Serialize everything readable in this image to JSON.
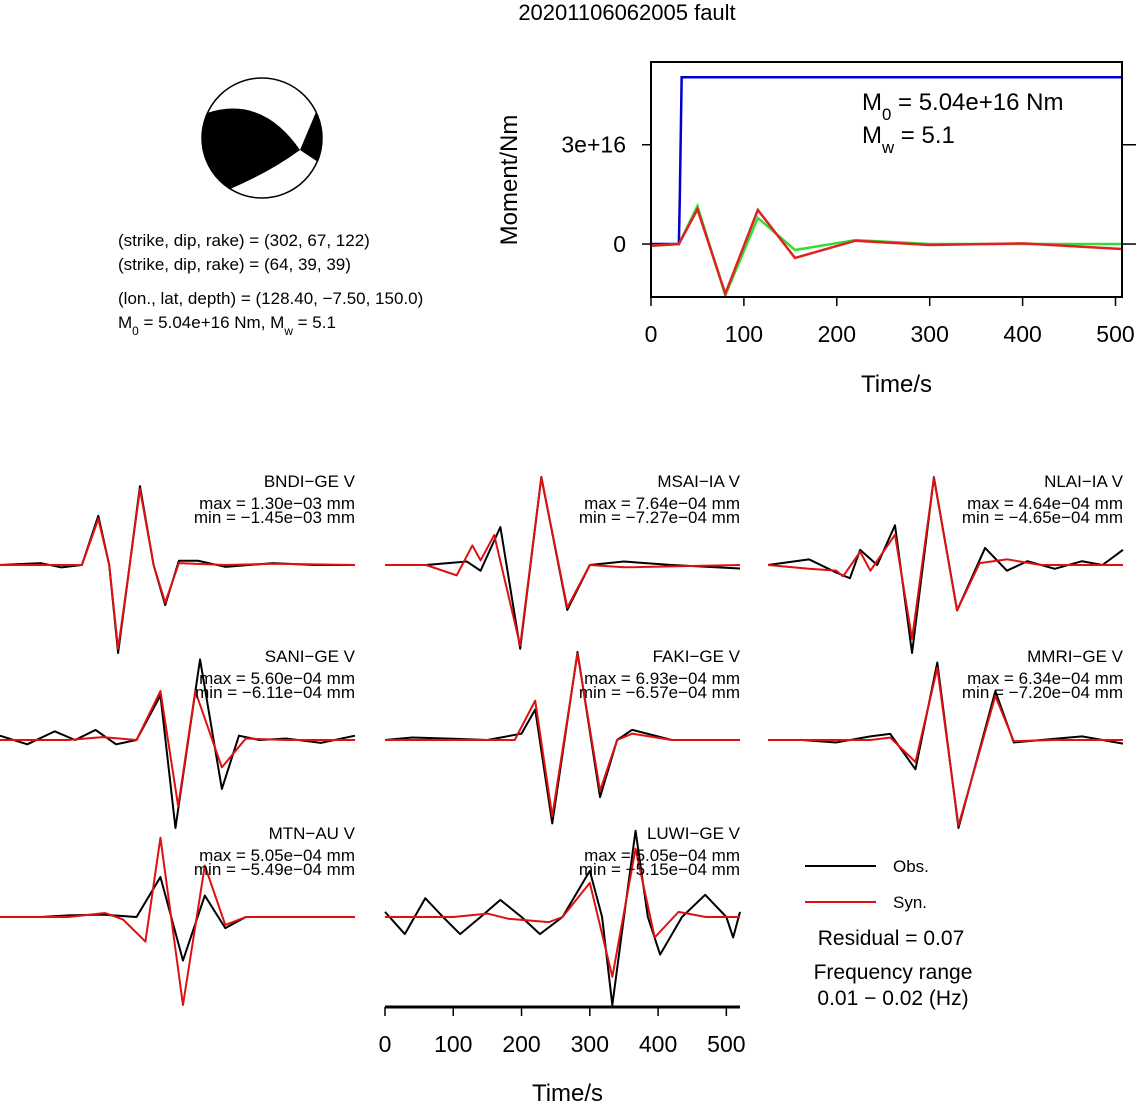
{
  "title": "20201106062005 fault",
  "mechanism": {
    "lines": [
      "(strike, dip, rake) = (302, 67, 122)",
      "(strike, dip, rake) = (64, 39, 39)",
      "(lon., lat, depth) = (128.40, −7.50, 150.0)"
    ],
    "moment_line": [
      "M",
      "0",
      " = 5.04e+16 Nm, M",
      "w",
      " = 5.1"
    ]
  },
  "chart_data": [
    {
      "type": "line",
      "xlabel": "Time/s",
      "ylabel": "Moment/Nm",
      "xlim": [
        0,
        507
      ],
      "ylim": [
        -1.6e+16,
        5.5e+16
      ],
      "xticks": [
        0,
        100,
        200,
        300,
        400,
        500
      ],
      "yticks": [
        0,
        {
          "value": 3e+16,
          "label": "3e+16"
        }
      ],
      "annotations": [
        [
          "M",
          "0",
          " = 5.04e+16 Nm"
        ],
        [
          "M",
          "w",
          " = 5.1"
        ]
      ],
      "series": [
        {
          "color": "#0000cc",
          "x": [
            0,
            30,
            31,
            33,
            507
          ],
          "values": [
            0,
            0,
            1.4e+16,
            5.04e+16,
            5.04e+16
          ]
        },
        {
          "color": "#33dd33",
          "x": [
            0,
            30,
            50,
            80,
            115,
            155,
            220,
            300,
            400,
            507
          ],
          "values": [
            -500000000000000.0,
            0,
            1.15e+16,
            -1.55e+16,
            7900000000000000.0,
            -1800000000000000.0,
            1200000000000000.0,
            0,
            0,
            0
          ]
        },
        {
          "color": "#dd2222",
          "x": [
            0,
            30,
            50,
            80,
            115,
            155,
            220,
            300,
            400,
            507
          ],
          "values": [
            -500000000000000.0,
            0,
            1.05e+16,
            -1.5e+16,
            1.03e+16,
            -4200000000000000.0,
            1000000000000000.0,
            -300000000000000.0,
            200000000000000.0,
            -1500000000000000.0
          ]
        }
      ]
    },
    {
      "type": "waveform",
      "xlabel": "Time/s",
      "xlim": [
        0,
        520
      ],
      "xticks": [
        0,
        100,
        200,
        300,
        400,
        500
      ],
      "legend": [
        {
          "name": "Obs.",
          "color": "#000000"
        },
        {
          "name": "Syn.",
          "color": "#e01010"
        }
      ],
      "residual": "Residual = 0.07",
      "frequency": [
        "Frequency range",
        "0.01 − 0.02 (Hz)"
      ],
      "stations": [
        {
          "name": "BNDI−GE V",
          "max": 0.0013,
          "max_label": "max = 1.30e−03 mm",
          "min": -0.00145,
          "min_label": "min = −1.45e−03 mm",
          "obs": {
            "x": [
              0,
              60,
              90,
              120,
              144,
              160,
              173,
              190,
              205,
              225,
              242,
              262,
              290,
              330,
              400,
              460,
              520
            ],
            "values": [
              0,
              3e-05,
              -4e-05,
              0,
              0.00081,
              0,
              -0.00145,
              0,
              0.0013,
              0,
              -0.00066,
              7e-05,
              7e-05,
              -3e-05,
              3e-05,
              0,
              0
            ]
          },
          "syn": {
            "x": [
              0,
              60,
              120,
              144,
              160,
              173,
              190,
              205,
              225,
              242,
              262,
              330,
              400,
              520
            ],
            "values": [
              0,
              0,
              0,
              0.00076,
              0,
              -0.00138,
              0,
              0.00125,
              0,
              -0.00062,
              3e-05,
              0,
              2e-05,
              0
            ]
          }
        },
        {
          "name": "MSAI−IA V",
          "max": 0.000764,
          "max_label": "max = 7.64e−04 mm",
          "min": -0.000727,
          "min_label": "min = −7.27e−04 mm",
          "obs": {
            "x": [
              0,
              60,
              120,
              140,
              169,
              198,
              229,
              267,
              300,
              350,
              420,
              520
            ],
            "values": [
              0,
              0,
              3e-05,
              -5e-05,
              0.00033,
              -0.000727,
              0.000764,
              -0.00039,
              0,
              3e-05,
              0,
              -3e-05
            ]
          },
          "syn": {
            "x": [
              0,
              60,
              105,
              128,
              140,
              160,
              198,
              229,
              267,
              300,
              350,
              520
            ],
            "values": [
              0,
              0,
              -9e-05,
              0.00017,
              4e-05,
              0.00026,
              -0.0007,
              0.00076,
              -0.00037,
              0,
              -2e-05,
              0
            ]
          }
        },
        {
          "name": "NLAI−IA V",
          "max": 0.000464,
          "max_label": "max = 4.64e−04 mm",
          "min": -0.000465,
          "min_label": "min = −4.65e−04 mm",
          "obs": {
            "x": [
              0,
              60,
              100,
              120,
              135,
              160,
              186,
              211,
              243,
              277,
              318,
              350,
              380,
              420,
              460,
              490,
              520
            ],
            "values": [
              0,
              3e-05,
              -4e-05,
              -7e-05,
              8e-05,
              0,
              0.00021,
              -0.000465,
              0.000464,
              -0.00024,
              9e-05,
              -3e-05,
              2e-05,
              -2e-05,
              2e-05,
              0,
              8e-05
            ]
          },
          "syn": {
            "x": [
              0,
              60,
              100,
              110,
              135,
              150,
              186,
              211,
              243,
              277,
              310,
              350,
              400,
              520
            ],
            "values": [
              0,
              -2e-05,
              -3e-05,
              -6e-05,
              7e-05,
              -3e-05,
              0.00016,
              -0.00039,
              0.00046,
              -0.00024,
              1e-05,
              3e-05,
              0,
              0
            ]
          }
        },
        {
          "name": "SANI−GE V",
          "max": 0.00056,
          "max_label": "max = 5.60e−04 mm",
          "min": -0.000611,
          "min_label": "min = −6.11e−04 mm",
          "obs": {
            "x": [
              0,
              40,
              80,
              110,
              140,
              170,
              200,
              235,
              257,
              293,
              325,
              350,
              380,
              420,
              470,
              520
            ],
            "values": [
              3e-05,
              -3e-05,
              6e-05,
              0,
              7e-05,
              -3e-05,
              0,
              0.00031,
              -0.000611,
              0.00056,
              -0.00034,
              3e-05,
              0,
              1e-05,
              -2e-05,
              3e-05
            ]
          },
          "syn": {
            "x": [
              0,
              100,
              150,
              200,
              235,
              261,
              286,
              325,
              360,
              420,
              520
            ],
            "values": [
              0,
              0,
              2e-05,
              0,
              0.00034,
              -0.00046,
              0.00034,
              -0.00019,
              1e-05,
              0,
              0
            ]
          }
        },
        {
          "name": "FAKI−GE V",
          "max": 0.000693,
          "max_label": "max = 6.93e−04 mm",
          "min": -0.000657,
          "min_label": "min = −6.57e−04 mm",
          "obs": {
            "x": [
              0,
              40,
              100,
              150,
              200,
              220,
              245,
              282,
              315,
              340,
              362,
              420,
              520
            ],
            "values": [
              0,
              2e-05,
              1e-05,
              0,
              5e-05,
              0.00024,
              -0.000657,
              0.000693,
              -0.00045,
              0,
              8e-05,
              0,
              0
            ]
          },
          "syn": {
            "x": [
              0,
              100,
              190,
              220,
              245,
              282,
              315,
              340,
              362,
              420,
              520
            ],
            "values": [
              0,
              0,
              0,
              0.00031,
              -0.0006,
              0.00068,
              -0.0004,
              0,
              5e-05,
              0,
              0
            ]
          }
        },
        {
          "name": "MMRI−GE V",
          "max": 0.000634,
          "max_label": "max = 6.34e−04 mm",
          "min": -0.00072,
          "min_label": "min = −7.20e−04 mm",
          "obs": {
            "x": [
              0,
              50,
              100,
              150,
              179,
              216,
              248,
              279,
              333,
              360,
              400,
              460,
              520
            ],
            "values": [
              0,
              0,
              -2e-05,
              3e-05,
              5e-05,
              -0.00024,
              0.000634,
              -0.00072,
              0.0004,
              -2e-05,
              0,
              3e-05,
              -3e-05
            ]
          },
          "syn": {
            "x": [
              0,
              100,
              150,
              179,
              216,
              248,
              279,
              333,
              360,
              420,
              520
            ],
            "values": [
              0,
              0,
              0,
              2e-05,
              -0.00018,
              0.00059,
              -0.0007,
              0.00036,
              -1e-05,
              0,
              0
            ]
          }
        },
        {
          "name": "MTN−AU V",
          "max": 0.000505,
          "max_label": "max = 5.05e−04 mm",
          "min": -0.000549,
          "min_label": "min = −5.49e−04 mm",
          "obs": {
            "x": [
              0,
              60,
              100,
              150,
              200,
              235,
              268,
              300,
              330,
              360,
              420,
              520
            ],
            "values": [
              0,
              0,
              2e-05,
              3e-05,
              0,
              0.000505,
              -0.000549,
              0.00027,
              -0.00014,
              0,
              0,
              0
            ]
          },
          "syn": {
            "x": [
              0,
              100,
              154,
              180,
              213,
              235,
              268,
              300,
              330,
              360,
              520
            ],
            "values": [
              0,
              0,
              5e-05,
              -3e-05,
              -0.00031,
              0.001,
              -0.00111,
              0.00065,
              -0.0001,
              0,
              0
            ]
          }
        },
        {
          "name": "LUWI−GE V",
          "max": 0.000505,
          "max_label": "max = 5.05e−04 mm",
          "min": -0.000515,
          "min_label": "min = −5.15e−04 mm",
          "obs": {
            "x": [
              0,
              29,
              59,
              85,
              110,
              140,
              169,
              200,
              227,
              260,
              300,
              318,
              333,
              350,
              367,
              385,
              403,
              435,
              469,
              500,
              510,
              520
            ],
            "values": [
              3e-05,
              -0.0001,
              0.00011,
              0,
              -0.0001,
              0,
              0.0001,
              0,
              -0.0001,
              0,
              0.00027,
              0,
              -0.000515,
              0,
              0.000505,
              0,
              -0.00022,
              0,
              0.00013,
              0,
              -0.00012,
              3e-05
            ]
          },
          "syn": {
            "x": [
              0,
              100,
              150,
              180,
              240,
              260,
              300,
              333,
              367,
              395,
              430,
              470,
              520
            ],
            "values": [
              0,
              0,
              2e-05,
              -1e-05,
              -3e-05,
              0,
              0.0002,
              -0.00035,
              0.0004,
              -0.00012,
              3e-05,
              0,
              0
            ]
          }
        }
      ]
    }
  ]
}
